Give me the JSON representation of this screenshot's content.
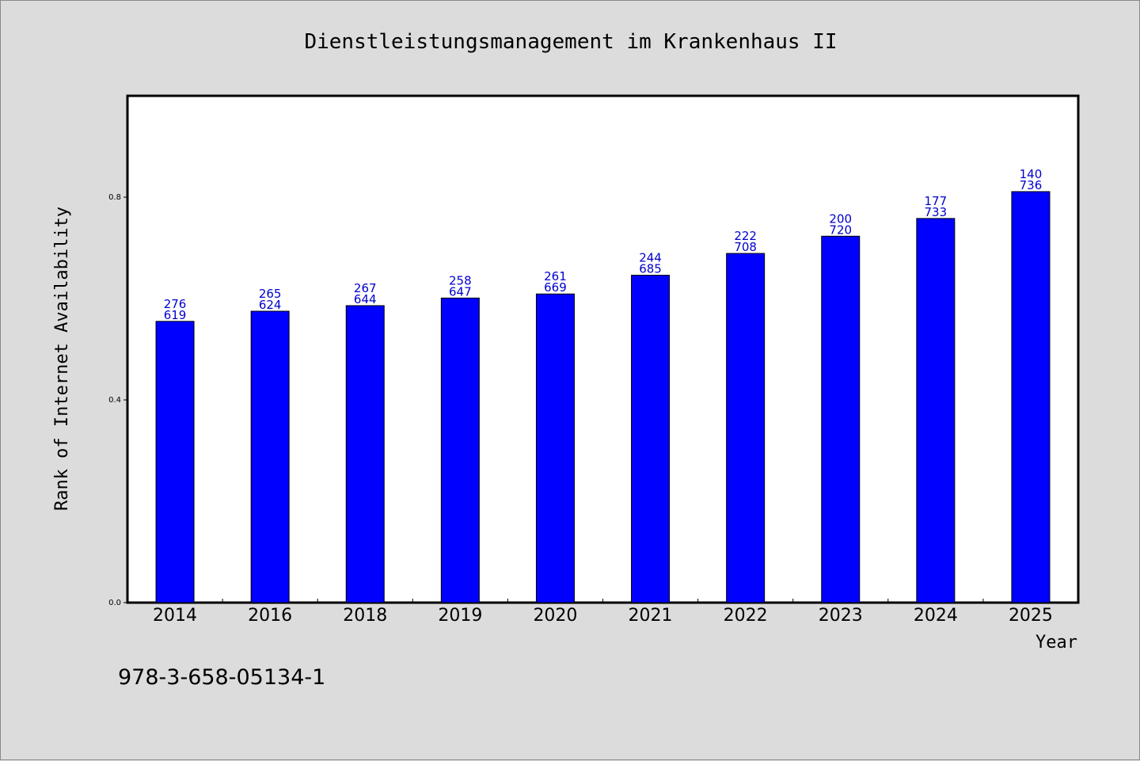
{
  "chart_data": {
    "type": "bar",
    "title": "Dienstleistungsmanagement im Krankenhaus II",
    "xlabel": "Year",
    "ylabel": "Rank of Internet Availability",
    "categories": [
      "2014",
      "2016",
      "2018",
      "2019",
      "2020",
      "2021",
      "2022",
      "2023",
      "2024",
      "2025"
    ],
    "values": [
      0.555,
      0.575,
      0.586,
      0.601,
      0.609,
      0.646,
      0.689,
      0.723,
      0.758,
      0.811
    ],
    "data_labels": [
      [
        "276",
        "619"
      ],
      [
        "265",
        "624"
      ],
      [
        "267",
        "644"
      ],
      [
        "258",
        "647"
      ],
      [
        "261",
        "669"
      ],
      [
        "244",
        "685"
      ],
      [
        "222",
        "708"
      ],
      [
        "200",
        "720"
      ],
      [
        "177",
        "733"
      ],
      [
        "140",
        "736"
      ]
    ],
    "ylim": [
      0,
      1.0
    ],
    "yticks": [
      0.0,
      0.4,
      0.8
    ],
    "ytick_labels": [
      "0.0",
      "0.4",
      "0.8"
    ],
    "grid": false,
    "legend": "none",
    "bar_color": "#0000ff",
    "label_color": "#0000cc"
  },
  "footer_text": "978-3-658-05134-1"
}
